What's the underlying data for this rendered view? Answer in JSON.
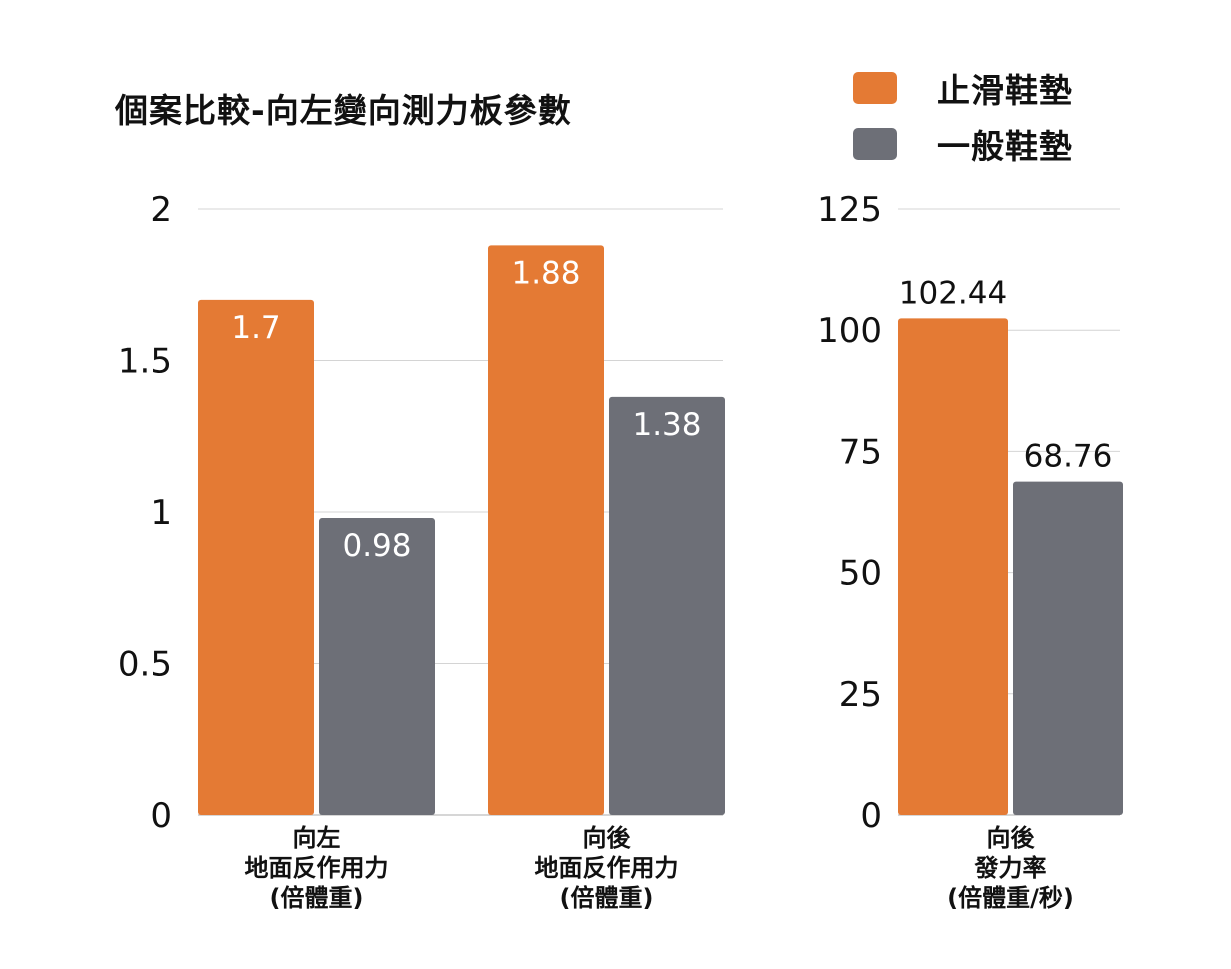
{
  "title": "個案比較-向左變向測力板參數",
  "legend": [
    {
      "label": "止滑鞋墊",
      "color": "#E47A34"
    },
    {
      "label": "一般鞋墊",
      "color": "#6D6F77"
    }
  ],
  "chart_data": [
    {
      "type": "bar",
      "categories": [
        [
          "向左",
          "地面反作用力",
          "(倍體重)"
        ],
        [
          "向後",
          "地面反作用力",
          "(倍體重)"
        ]
      ],
      "series": [
        {
          "name": "止滑鞋墊",
          "values": [
            1.7,
            1.88
          ],
          "labels": [
            "1.7",
            "1.88"
          ]
        },
        {
          "name": "一般鞋墊",
          "values": [
            0.98,
            1.38
          ],
          "labels": [
            "0.98",
            "1.38"
          ]
        }
      ],
      "yticks": [
        "0",
        "0.5",
        "1",
        "1.5",
        "2"
      ],
      "ylim": [
        0,
        2
      ],
      "grid": true,
      "label_position": "inside-top"
    },
    {
      "type": "bar",
      "categories": [
        [
          "向後",
          "發力率",
          "(倍體重/秒)"
        ]
      ],
      "series": [
        {
          "name": "止滑鞋墊",
          "values": [
            102.44
          ],
          "labels": [
            "102.44"
          ]
        },
        {
          "name": "一般鞋墊",
          "values": [
            68.76
          ],
          "labels": [
            "68.76"
          ]
        }
      ],
      "yticks": [
        "0",
        "25",
        "50",
        "75",
        "100",
        "125"
      ],
      "ylim": [
        0,
        125
      ],
      "grid": true,
      "label_position": "above"
    }
  ]
}
